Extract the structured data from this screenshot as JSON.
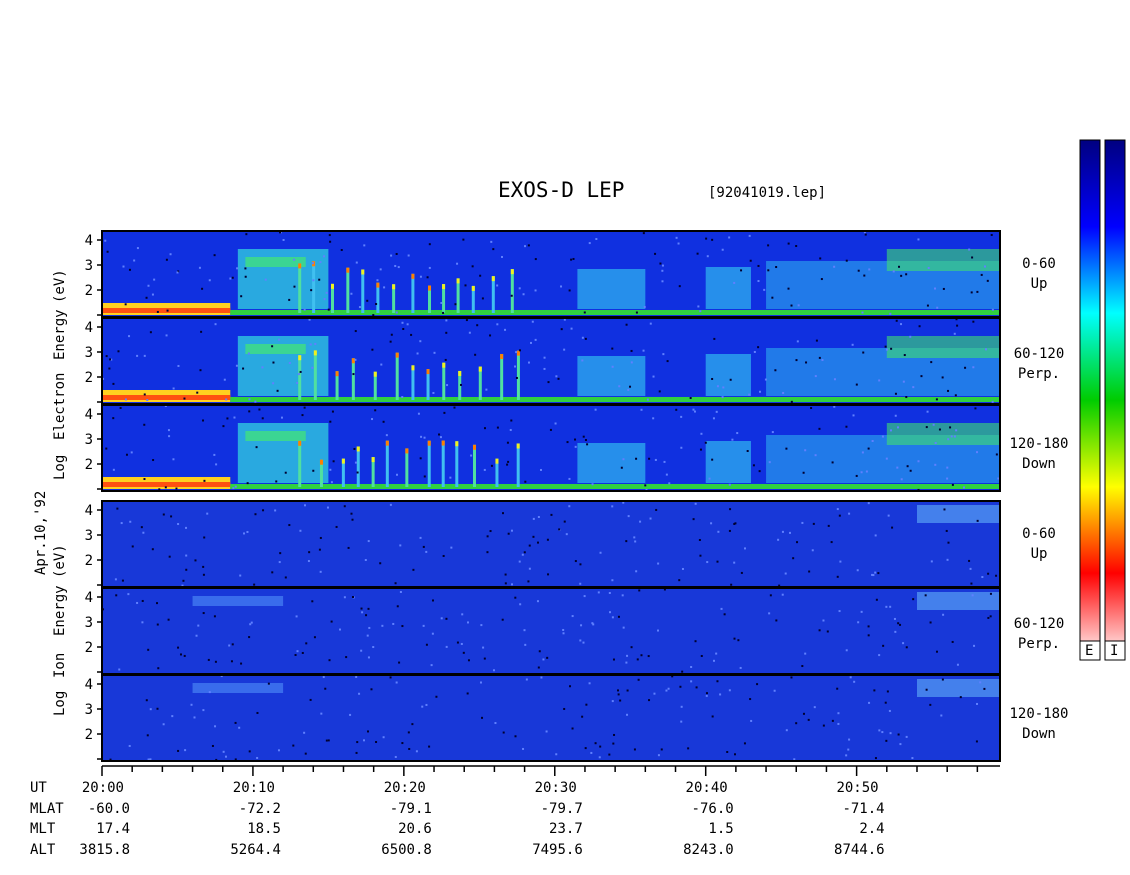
{
  "title": "EXOS-D LEP",
  "filename": "[92041019.lep]",
  "date": "Apr.10,'92",
  "electron_axis_label": [
    "Log",
    "Electron",
    "Energy",
    "(eV)"
  ],
  "ion_axis_label": [
    "Log",
    "Ion",
    "Energy",
    "(eV)"
  ],
  "panels": [
    {
      "species": "electron",
      "angle": "0-60",
      "direction": "Up"
    },
    {
      "species": "electron",
      "angle": "60-120",
      "direction": "Perp."
    },
    {
      "species": "electron",
      "angle": "120-180",
      "direction": "Down"
    },
    {
      "species": "ion",
      "angle": "0-60",
      "direction": "Up"
    },
    {
      "species": "ion",
      "angle": "60-120",
      "direction": "Perp."
    },
    {
      "species": "ion",
      "angle": "120-180",
      "direction": "Down"
    }
  ],
  "colorbar_labels": [
    "E",
    "I"
  ],
  "footer": {
    "row_labels": [
      "UT",
      "MLAT",
      "MLT",
      "ALT"
    ],
    "ut": [
      "20:00",
      "20:10",
      "20:20",
      "20:30",
      "20:40",
      "20:50"
    ],
    "mlat": [
      "-60.0",
      "-72.2",
      "-79.1",
      "-79.7",
      "-76.0",
      "-71.4"
    ],
    "mlt": [
      "17.4",
      "18.5",
      "20.6",
      "23.7",
      "1.5",
      "2.4"
    ],
    "alt": [
      "3815.8",
      "5264.4",
      "6500.8",
      "7495.6",
      "8243.0",
      "8744.6"
    ]
  },
  "chart_data": {
    "type": "heatmap",
    "x": [
      "20:00",
      "20:10",
      "20:20",
      "20:30",
      "20:40",
      "20:50"
    ],
    "xlim_minutes_after_2000": [
      0,
      59.5
    ],
    "ylim_log_energy_eV": [
      1,
      4.2
    ],
    "ytick_labels": [
      "2",
      "3",
      "4"
    ],
    "colormap": [
      "#ffffff",
      "#ff0000",
      "#ffff00",
      "#00cc00",
      "#00ffff",
      "#0000ff",
      "#000080"
    ]
  }
}
